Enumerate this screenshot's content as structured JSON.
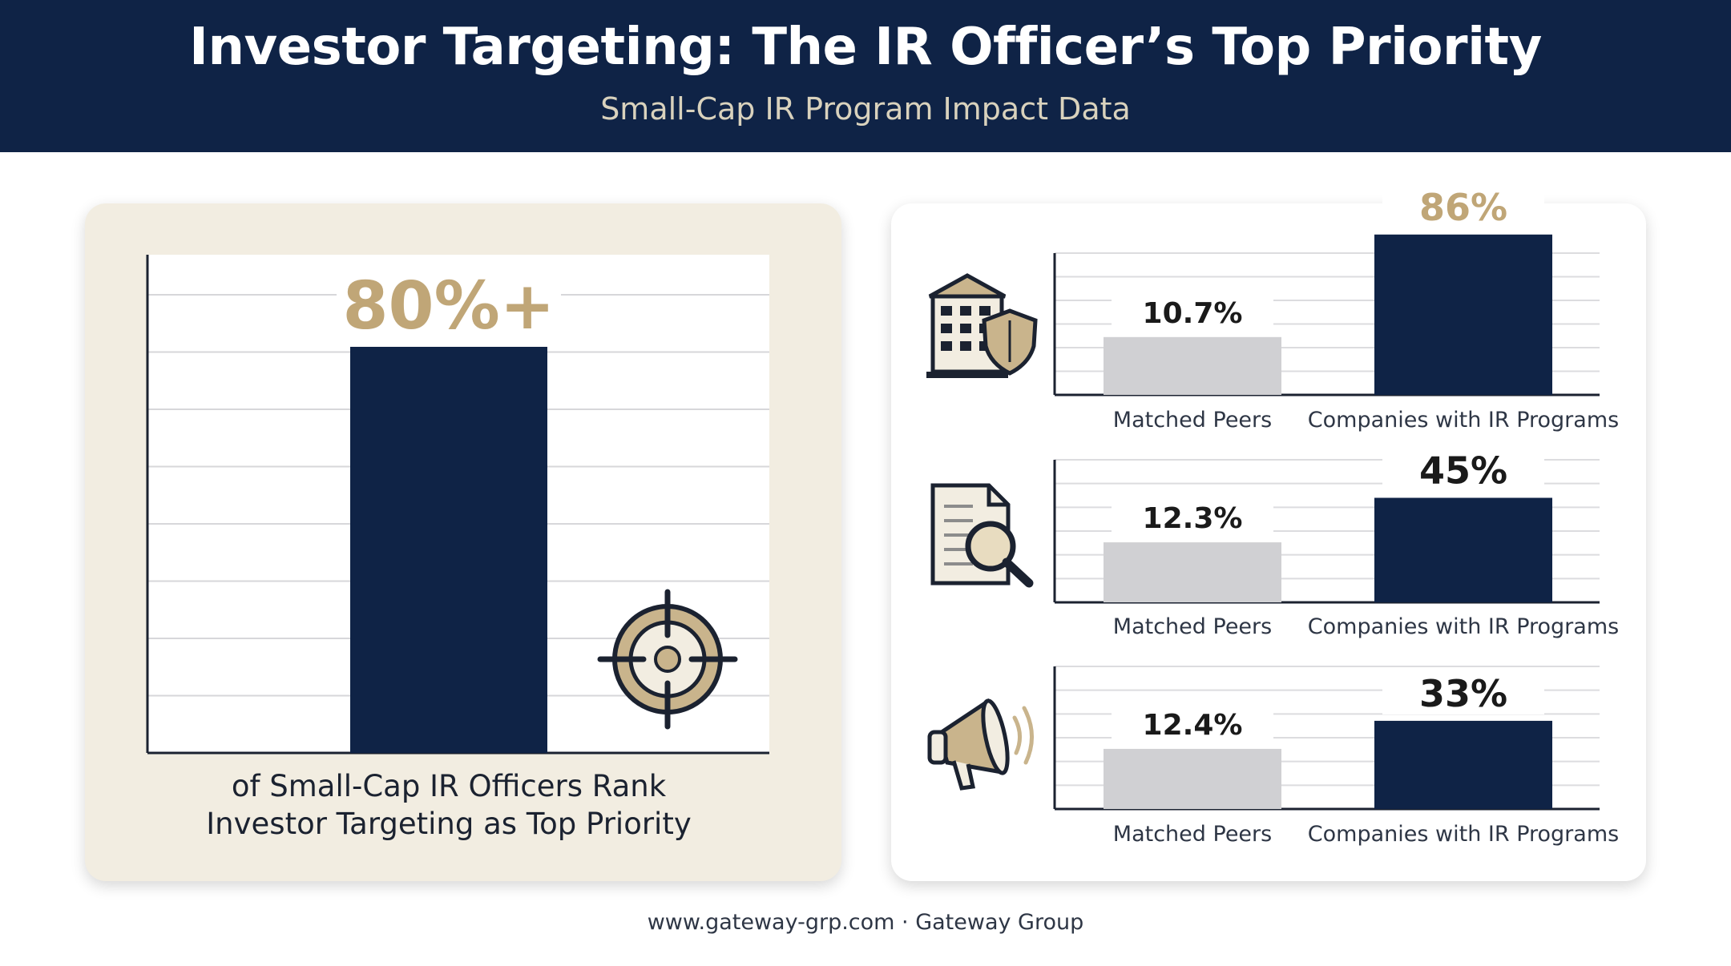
{
  "header": {
    "title": "Investor Targeting: The IR Officer’s Top Priority",
    "subtitle": "Small-Cap IR Program Impact Data"
  },
  "colors": {
    "header_bg": "#0f2346",
    "navy": "#0f2346",
    "gold": "#c0a677",
    "gray_bar": "#d0d0d3",
    "left_card_bg": "#f2ede1"
  },
  "chart_data": [
    {
      "type": "bar",
      "categories": [
        ""
      ],
      "values": [
        80
      ],
      "value_labels": [
        "80%+"
      ],
      "ylim": [
        0,
        100
      ],
      "caption_lines": [
        "of Small-Cap IR Officers Rank",
        "Investor Targeting as Top Priority"
      ],
      "icon": "target-crosshair-icon",
      "grid": true
    },
    {
      "type": "bar",
      "categories": [
        "Matched Peers",
        "Companies with IR Programs"
      ],
      "values": [
        10.7,
        86
      ],
      "value_labels": [
        "10.7%",
        "86%"
      ],
      "label_colors": [
        "#1a1a1a",
        "#c0a677"
      ],
      "icon": "building-shield-icon",
      "grid": true
    },
    {
      "type": "bar",
      "categories": [
        "Matched Peers",
        "Companies with IR Programs"
      ],
      "values": [
        12.3,
        45
      ],
      "value_labels": [
        "12.3%",
        "45%"
      ],
      "label_colors": [
        "#1a1a1a",
        "#1a1a1a"
      ],
      "icon": "document-magnifier-icon",
      "grid": true
    },
    {
      "type": "bar",
      "categories": [
        "Matched Peers",
        "Companies with IR Programs"
      ],
      "values": [
        12.4,
        33
      ],
      "value_labels": [
        "12.4%",
        "33%"
      ],
      "label_colors": [
        "#1a1a1a",
        "#1a1a1a"
      ],
      "icon": "megaphone-icon",
      "grid": true
    }
  ],
  "footer": {
    "text": "www.gateway-grp.com · Gateway Group"
  }
}
